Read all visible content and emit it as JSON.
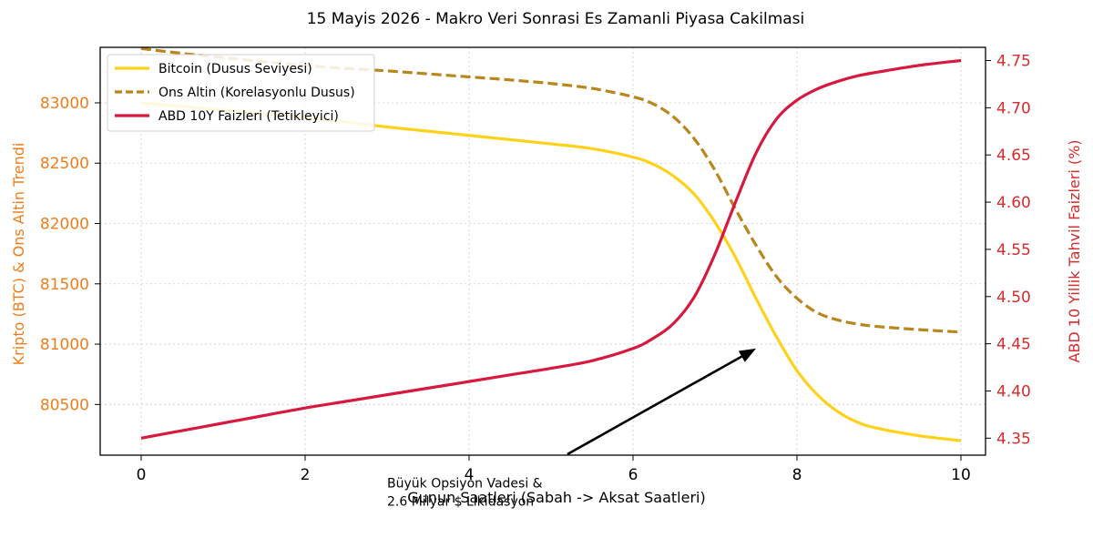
{
  "chart_data": {
    "type": "line",
    "title": "15 Mayis 2026 - Makro Veri Sonrasi Es Zamanli Piyasa Cakilmasi",
    "xlabel": "Gunun Saatleri (Sabah -> Aksat Saatleri)",
    "ylabel_left": "Kripto (BTC) & Ons Altin Trendi",
    "ylabel_right": "ABD 10 Yillik Tahvil Faizleri (%)",
    "xlim": [
      -0.5,
      10.3
    ],
    "ylim_left": [
      80080,
      83460
    ],
    "ylim_right": [
      4.332,
      4.764
    ],
    "x_ticks": [
      0,
      2,
      4,
      6,
      8,
      10
    ],
    "y_ticks_left": [
      80500,
      81000,
      81500,
      82000,
      82500,
      83000
    ],
    "y_ticks_right": [
      4.35,
      4.4,
      4.45,
      4.5,
      4.55,
      4.6,
      4.65,
      4.7,
      4.75
    ],
    "grid": true,
    "legend_position": "top-left",
    "colors": {
      "left_axis": "#f07d1a",
      "right_axis": "#d62b2b"
    },
    "x": [
      0,
      0.5,
      1,
      1.5,
      2,
      2.5,
      3,
      3.5,
      4,
      4.5,
      5,
      5.5,
      6,
      6.25,
      6.5,
      6.75,
      7,
      7.25,
      7.5,
      7.75,
      8,
      8.25,
      8.5,
      8.75,
      9,
      9.5,
      10
    ],
    "series": [
      {
        "name": "Bitcoin (Dusus Seviyesi)",
        "axis": "left",
        "style": "solid",
        "color": "#ffd21a",
        "values": [
          83000,
          82970,
          82940,
          82910,
          82880,
          82840,
          82800,
          82765,
          82730,
          82695,
          82660,
          82620,
          82550,
          82490,
          82390,
          82240,
          82010,
          81720,
          81380,
          81060,
          80780,
          80580,
          80440,
          80350,
          80300,
          80240,
          80200
        ]
      },
      {
        "name": "Ons Altin (Korelasyonlu Dusus)",
        "axis": "left",
        "style": "dashed",
        "color": "#b8861b",
        "values": [
          83450,
          83410,
          83375,
          83340,
          83310,
          83285,
          83265,
          83240,
          83215,
          83190,
          83160,
          83120,
          83050,
          82990,
          82880,
          82700,
          82440,
          82120,
          81820,
          81560,
          81380,
          81260,
          81200,
          81165,
          81145,
          81120,
          81100
        ]
      },
      {
        "name": "ABD 10Y Faizleri (Tetikleyici)",
        "axis": "right",
        "style": "solid",
        "color": "#d7193f",
        "values": [
          4.35,
          4.358,
          4.366,
          4.374,
          4.382,
          4.389,
          4.396,
          4.403,
          4.41,
          4.417,
          4.424,
          4.432,
          4.445,
          4.456,
          4.472,
          4.5,
          4.545,
          4.6,
          4.652,
          4.688,
          4.708,
          4.72,
          4.728,
          4.734,
          4.738,
          4.745,
          4.75
        ]
      }
    ],
    "annotation": {
      "text_lines": [
        "Büyük Opsiyon Vadesi &",
        "2.6 Milyar $ Likidasyon"
      ],
      "text_x": 3.0,
      "text_y_right": 4.298,
      "arrow_from_x": 5.2,
      "arrow_from_y_right": 4.333,
      "arrow_to_x": 7.5,
      "arrow_to_y_right": 4.445
    }
  }
}
